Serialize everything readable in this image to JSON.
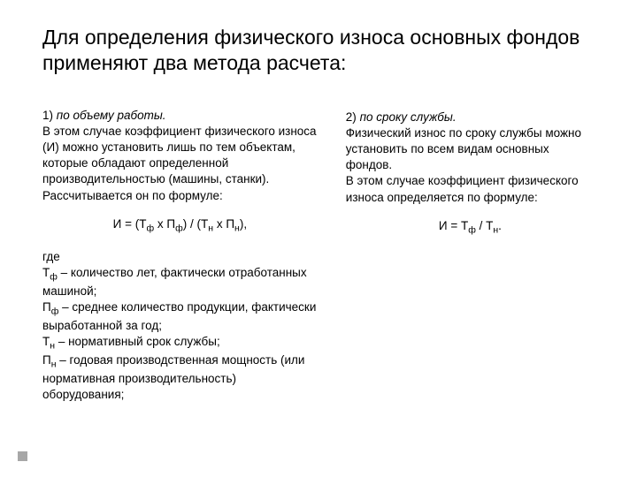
{
  "title": "Для определения физического износа основных фондов применяют два метода расчета:",
  "left": {
    "lead_num": "1)",
    "lead_text": " по объему работы.",
    "p1": "В этом случае коэффициент физического износа (И) можно установить лишь по тем объектам, которые обладают определенной производительностью (машины, станки). Рассчитывается он по формуле:",
    "formula_pre": "И = (Т",
    "formula_s1": "ф",
    "formula_mid1": " x П",
    "formula_s2": "ф",
    "formula_mid2": ") / (Т",
    "formula_s3": "н",
    "formula_mid3": " x П",
    "formula_s4": "н",
    "formula_end": "),",
    "where_label": "где",
    "w1a": "Т",
    "w1s": "ф",
    "w1b": " – количество лет, фактически отработанных машиной;",
    "w2a": "П",
    "w2s": "ф",
    "w2b": " – среднее количество продукции, фактически выработанной за год;",
    "w3a": "Т",
    "w3s": "н",
    "w3b": " – нормативный срок службы;",
    "w4a": "П",
    "w4s": "н",
    "w4b": " – годовая производственная мощность (или нормативная производительность) оборудования;"
  },
  "right": {
    "lead_num": "2)",
    "lead_text": " по сроку службы.",
    "p1": "Физический износ по сроку службы можно установить по всем видам основных фондов.",
    "p2": "В этом случае коэффициент физического износа определяется по формуле:",
    "f_pre": "И = Т",
    "f_s1": "ф",
    "f_mid": " / Т",
    "f_s2": "н",
    "f_end": "."
  },
  "colors": {
    "bg": "#ffffff",
    "text": "#000000",
    "bullet": "#a7a7a7"
  }
}
